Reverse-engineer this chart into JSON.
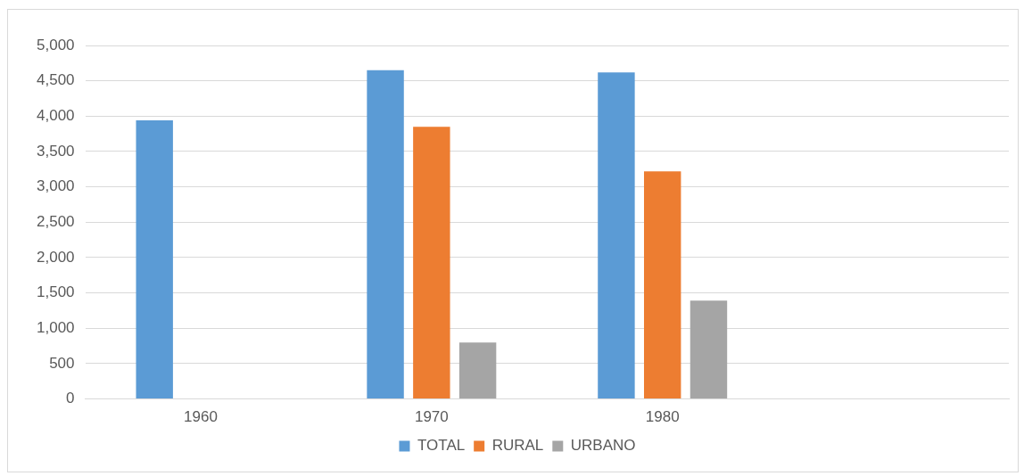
{
  "chart_data": {
    "type": "bar",
    "categories": [
      "1960",
      "1970",
      "1980",
      null
    ],
    "series": [
      {
        "name": "TOTAL",
        "color": "#5b9bd5",
        "values": [
          3940,
          4650,
          4620,
          null
        ]
      },
      {
        "name": "RURAL",
        "color": "#ed7d31",
        "values": [
          null,
          3850,
          3220,
          null
        ]
      },
      {
        "name": "URBANO",
        "color": "#a5a5a5",
        "values": [
          null,
          800,
          1390,
          null
        ]
      }
    ],
    "ylim": [
      0,
      5000
    ],
    "yticks": [
      0,
      500,
      {
        "value": 1000,
        "label": "1,000"
      },
      {
        "value": 1500,
        "label": "1,500"
      },
      {
        "value": 2000,
        "label": "2,000"
      },
      {
        "value": 2500,
        "label": "2,500"
      },
      {
        "value": 3000,
        "label": "3,000"
      },
      {
        "value": 3500,
        "label": "3,500"
      },
      {
        "value": 4000,
        "label": "4,000"
      },
      {
        "value": 4500,
        "label": "4,500"
      },
      {
        "value": 5000,
        "label": "5,000"
      }
    ],
    "grid": "y",
    "legend": "bottom"
  }
}
